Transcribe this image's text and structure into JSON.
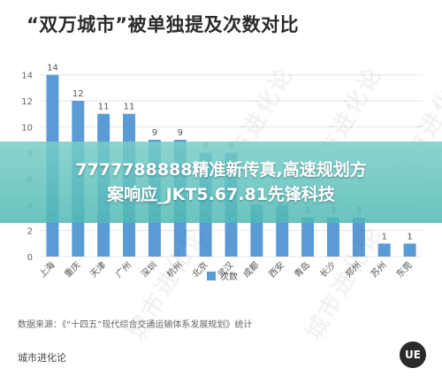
{
  "title": "“双万城市”被单独提及次数对比",
  "overlay_text_line1": "7777788888精准新传真,高速规划方",
  "overlay_text_line2": "案响应_JKT5.67.81先锋科技",
  "source": "数据来源：《“十四五”现代综合交通运输体系发展规划》统计",
  "brand": "城市进化论",
  "watermark": "城市进化论",
  "logo_text": "UE",
  "colors": {
    "bar": "#5b9bd5",
    "grid": "#e6e6e6",
    "axis_text": "#666666"
  },
  "chart_data": {
    "type": "bar",
    "categories": [
      "上海",
      "重庆",
      "天津",
      "广州",
      "深圳",
      "杭州",
      "北京",
      "武汉",
      "成都",
      "西安",
      "青岛",
      "长沙",
      "郑州",
      "苏州",
      "东莞"
    ],
    "series": [
      {
        "name": "次数",
        "values": [
          14,
          12,
          11,
          11,
          9,
          9,
          8,
          8,
          4,
          4,
          3,
          3,
          3,
          1,
          1
        ]
      }
    ],
    "yticks": [
      0,
      2,
      4,
      6,
      8,
      10,
      12,
      14
    ],
    "ylim": [
      0,
      15
    ],
    "grid": true,
    "legend_position": "bottom-center",
    "data_labels": true
  }
}
